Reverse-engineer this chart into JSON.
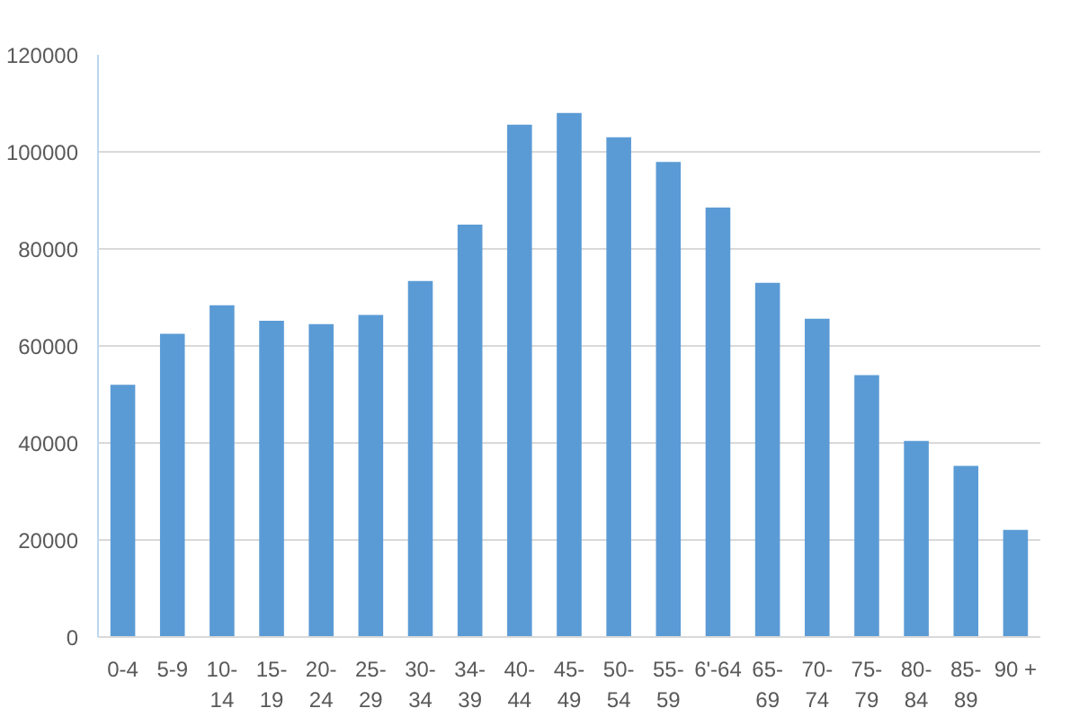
{
  "chart_data": {
    "type": "bar",
    "categories": [
      "0-4",
      "5-9",
      "10-\n14",
      "15-\n19",
      "20-\n24",
      "25-\n29",
      "30-\n34",
      "34-\n39",
      "40-\n44",
      "45-\n49",
      "50-\n54",
      "55-\n59",
      "6'-64",
      "65-\n69",
      "70-\n74",
      "75-\n79",
      "80-\n84",
      "85-\n89",
      "90 +"
    ],
    "values": [
      52000,
      62500,
      68400,
      65200,
      64500,
      66400,
      73400,
      85000,
      105600,
      108000,
      103000,
      97900,
      88500,
      73000,
      65600,
      54000,
      40400,
      35300,
      22100
    ],
    "color": "#5b9bd5",
    "ylim": [
      0,
      120000
    ],
    "yticks": [
      0,
      20000,
      40000,
      60000,
      80000,
      100000,
      120000
    ],
    "grid": "y"
  }
}
